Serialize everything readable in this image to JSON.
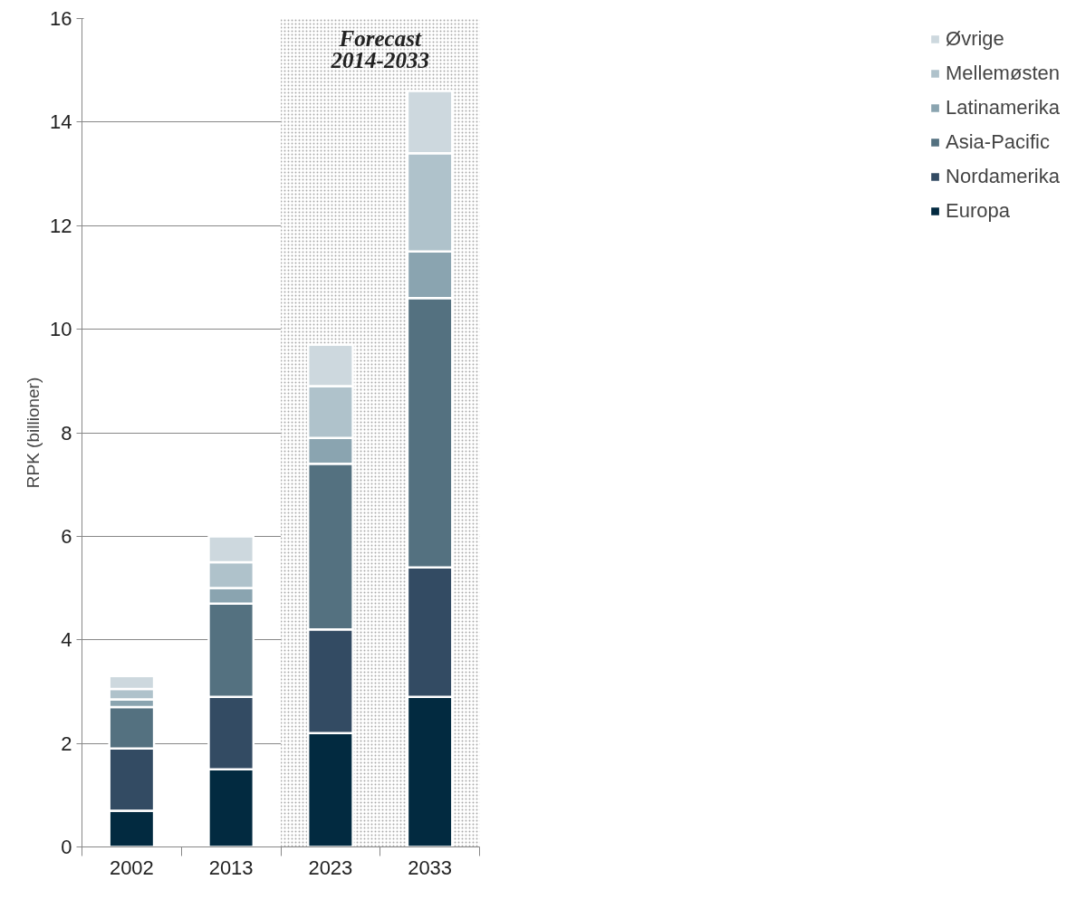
{
  "chart_data": {
    "type": "bar",
    "stacked": true,
    "ylabel": "RPK (billioner)",
    "categories": [
      "2002",
      "2013",
      "2023",
      "2033"
    ],
    "series": [
      {
        "name": "Europa",
        "color": "#022a40",
        "values": [
          0.7,
          1.5,
          2.2,
          2.9
        ]
      },
      {
        "name": "Nordamerika",
        "color": "#334b63",
        "values": [
          1.2,
          1.4,
          2.0,
          2.5
        ]
      },
      {
        "name": "Asia-Pacific",
        "color": "#547180",
        "values": [
          0.8,
          1.8,
          3.2,
          5.2
        ]
      },
      {
        "name": "Latinamerika",
        "color": "#8aa4b0",
        "values": [
          0.15,
          0.3,
          0.5,
          0.9
        ]
      },
      {
        "name": "Mellemøsten",
        "color": "#afc2cb",
        "values": [
          0.2,
          0.5,
          1.0,
          1.9
        ]
      },
      {
        "name": "Øvrige",
        "color": "#cdd8de",
        "values": [
          0.25,
          0.5,
          0.8,
          1.2
        ]
      }
    ],
    "ylim": [
      0,
      16
    ],
    "yticks": [
      0,
      2,
      4,
      6,
      8,
      10,
      12,
      14,
      16
    ],
    "grid": "y",
    "legend": "right",
    "bands": [
      {
        "axis": "x",
        "from": "2023",
        "to": "2033",
        "label": "Forecast\n2014-2033",
        "color": "#aaaaaa"
      }
    ]
  }
}
